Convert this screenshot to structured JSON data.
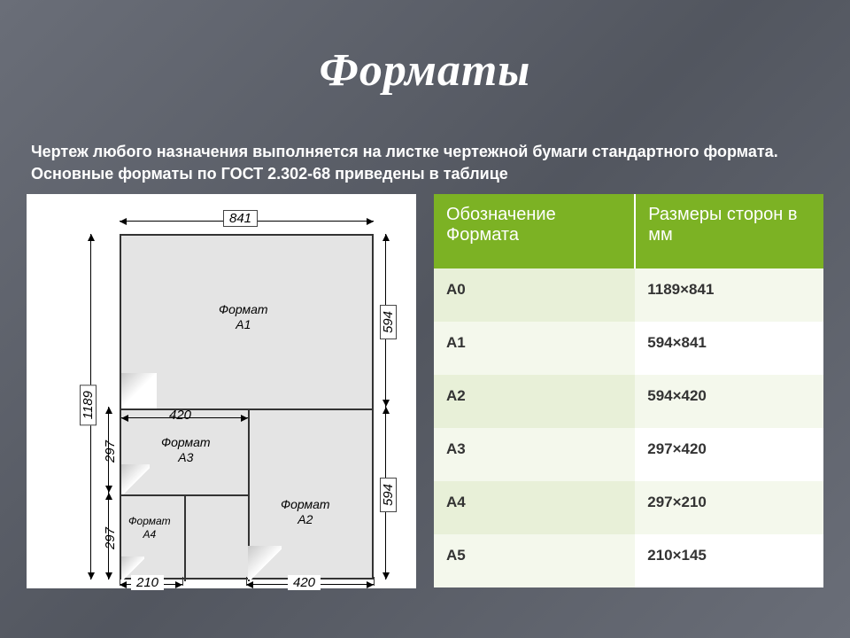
{
  "title": "Форматы",
  "subtitle": "Чертеж любого назначения выполняется  на листке чертежной бумаги стандартного  формата. Основные форматы по ГОСТ 2.302-68 приведены в таблице",
  "table": {
    "columns": [
      "Обозначение Формата",
      "Размеры сторон в мм"
    ],
    "rows": [
      [
        "А0",
        "1189×841"
      ],
      [
        "А1",
        "594×841"
      ],
      [
        "А2",
        "594×420"
      ],
      [
        "А3",
        "297×420"
      ],
      [
        "А4",
        "297×210"
      ],
      [
        "А5",
        "210×145"
      ]
    ],
    "header_bg": "#7cb224",
    "header_fg": "#ffffff",
    "stripe_dark": "#e8f0d8",
    "stripe_light": "#f4f8ec",
    "font_size_header": 20,
    "font_size_cell": 17
  },
  "diagram": {
    "outer_w_mm": 841,
    "outer_h_mm": 1189,
    "dims": {
      "top_841": "841",
      "left_1189": "1189",
      "a1_594_right": "594",
      "a2_594_right": "594",
      "a2_420_bottom": "420",
      "a3_420_top": "420",
      "a3_297_left": "297",
      "a4_297_left": "297",
      "a4_210_bottom": "210"
    },
    "labels": {
      "a1": "Формат\nА1",
      "a2": "Формат\nА2",
      "a3": "Формат\nА3",
      "a4": "Формат\nА4"
    },
    "colors": {
      "bg": "#ffffff",
      "sheet": "#e4e4e4",
      "line": "#333333"
    }
  }
}
